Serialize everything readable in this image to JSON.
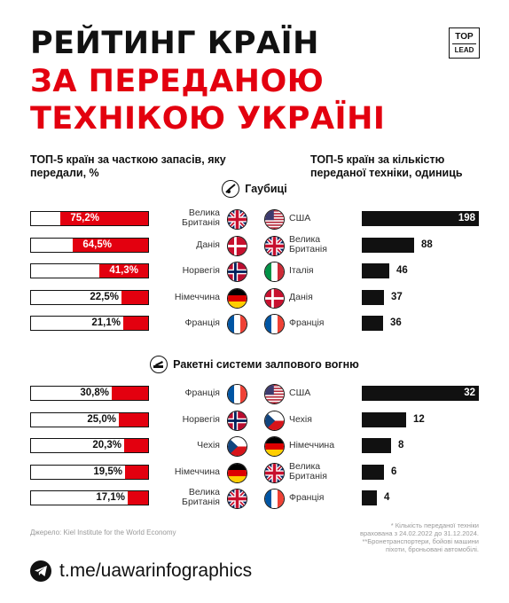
{
  "title": {
    "line1": "РЕЙТИНГ КРАЇН",
    "line2": "ЗА ПЕРЕДАНОЮ",
    "line3": "ТЕХНІКОЮ УКРАЇНІ"
  },
  "logo": {
    "top": "TOP",
    "bottom": "LEAD",
    "icon": "toplead-logo"
  },
  "headers": {
    "left": "ТОП-5 країн за часткою запасів, яку передали, %",
    "right": "ТОП-5 країн за кількістю переданої техніки, одиниць"
  },
  "colors": {
    "accent": "#e3000f",
    "bar": "#111111"
  },
  "chart_data": [
    {
      "type": "bar",
      "orientation": "horizontal",
      "section": "Гаубиці",
      "metric": "percent",
      "icon": "howitzer-icon",
      "categories": [
        "Велика Британія",
        "Данія",
        "Норвегія",
        "Німеччина",
        "Франція"
      ],
      "values": [
        75.2,
        64.5,
        41.3,
        22.5,
        21.1
      ],
      "labels": [
        "75,2%",
        "64,5%",
        "41,3%",
        "22,5%",
        "21,1%"
      ],
      "flags": [
        "uk",
        "dk",
        "no",
        "de",
        "fr"
      ],
      "xlim": [
        0,
        100
      ]
    },
    {
      "type": "bar",
      "orientation": "horizontal",
      "section": "Гаубиці",
      "metric": "units",
      "icon": "howitzer-icon",
      "categories": [
        "США",
        "Велика Британія",
        "Італія",
        "Данія",
        "Франція"
      ],
      "values": [
        198,
        88,
        46,
        37,
        36
      ],
      "labels": [
        "198",
        "88",
        "46",
        "37",
        "36"
      ],
      "flags": [
        "us",
        "uk",
        "it",
        "dk",
        "fr"
      ]
    },
    {
      "type": "bar",
      "orientation": "horizontal",
      "section": "Ракетні системи залпового вогню",
      "metric": "percent",
      "icon": "rocket-launcher-icon",
      "categories": [
        "Франція",
        "Норвегія",
        "Чехія",
        "Німеччина",
        "Велика Британія"
      ],
      "values": [
        30.8,
        25.0,
        20.3,
        19.5,
        17.1
      ],
      "labels": [
        "30,8%",
        "25,0%",
        "20,3%",
        "19,5%",
        "17,1%"
      ],
      "flags": [
        "fr",
        "no",
        "cz",
        "de",
        "uk"
      ],
      "xlim": [
        0,
        100
      ]
    },
    {
      "type": "bar",
      "orientation": "horizontal",
      "section": "Ракетні системи залпового вогню",
      "metric": "units",
      "icon": "rocket-launcher-icon",
      "categories": [
        "США",
        "Чехія",
        "Німеччина",
        "Велика Британія",
        "Франція"
      ],
      "values": [
        32,
        12,
        8,
        6,
        4
      ],
      "labels": [
        "32",
        "12",
        "8",
        "6",
        "4"
      ],
      "flags": [
        "us",
        "cz",
        "de",
        "uk",
        "fr"
      ]
    }
  ],
  "footer": {
    "source": "Джерело: Kiel Institute for the World Economy",
    "note1": "* Кількість переданої техніки",
    "note2": "врахована з 24.02.2022 до 31.12.2024.",
    "note3": "**Бронетранспортери, бойові машини",
    "note4": "піхоти, броньовані автомобілі.",
    "link": "t.me/uawarinfographics",
    "link_icon": "telegram-icon"
  }
}
